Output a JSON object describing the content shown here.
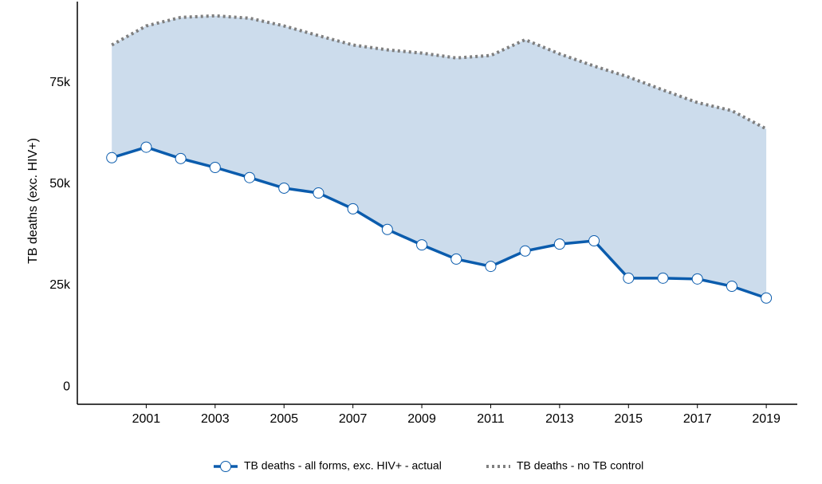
{
  "chart_data": {
    "type": "line",
    "y_label": "TB deaths (exc. HIV+)",
    "x": [
      2000,
      2001,
      2002,
      2003,
      2004,
      2005,
      2006,
      2007,
      2008,
      2009,
      2010,
      2011,
      2012,
      2013,
      2014,
      2015,
      2016,
      2017,
      2018,
      2019
    ],
    "series": [
      {
        "name": "TB deaths - all forms, exc. HIV+ - actual",
        "color": "#0b5cad",
        "style": "solid-markers",
        "values": [
          56500,
          59100,
          56300,
          54100,
          51600,
          49000,
          47800,
          43900,
          38800,
          35000,
          31500,
          29700,
          33500,
          35200,
          36000,
          26800,
          26800,
          26600,
          24800,
          21900
        ]
      },
      {
        "name": "TB deaths - no TB control",
        "color": "#7f7f7f",
        "style": "dotted",
        "values": [
          84300,
          89000,
          91100,
          91500,
          90900,
          89000,
          86600,
          84300,
          83100,
          82300,
          81100,
          81700,
          85600,
          82100,
          79100,
          76400,
          73200,
          70100,
          68100,
          63600
        ]
      }
    ],
    "fill_between": "#ccdcec",
    "xlim": [
      1999,
      2019.9
    ],
    "xticks": [
      2001,
      2003,
      2005,
      2007,
      2009,
      2011,
      2013,
      2015,
      2017,
      2019
    ],
    "ylim": [
      -4300,
      95000
    ],
    "yticks": [
      0,
      {
        "value": 25000,
        "label": "25k"
      },
      {
        "value": 50000,
        "label": "50k"
      },
      {
        "value": 75000,
        "label": "75k"
      }
    ],
    "grid": false,
    "legend": "bottom"
  }
}
